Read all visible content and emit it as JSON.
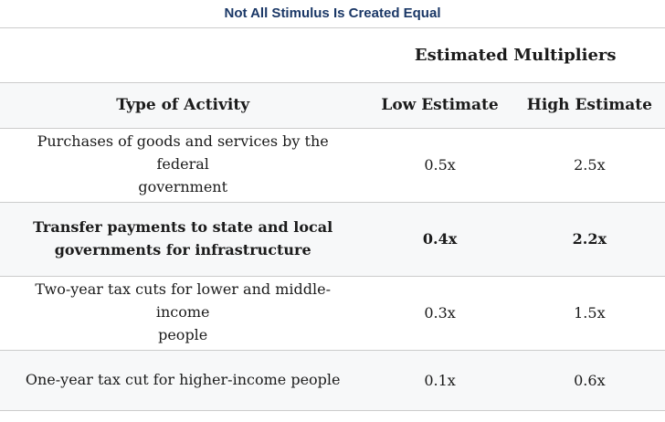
{
  "title": "Not All Stimulus Is Created Equal",
  "table": {
    "group_header": "Estimated Multipliers",
    "columns": [
      "Type of Activity",
      "Low Estimate",
      "High Estimate"
    ],
    "rows": [
      {
        "activity": "Purchases of goods and services by the federal\ngovernment",
        "low": "0.5x",
        "high": "2.5x"
      },
      {
        "activity": "Transfer payments to state and local\ngovernments for infrastructure",
        "low": "0.4x",
        "high": "2.2x"
      },
      {
        "activity": "Two-year tax cuts for lower and middle-income\npeople",
        "low": "0.3x",
        "high": "1.5x"
      },
      {
        "activity": "One-year tax cut for higher-income people",
        "low": "0.1x",
        "high": "0.6x"
      }
    ]
  },
  "colors": {
    "title-color": "#1a3766",
    "text-color": "#1b1b1b",
    "row-alt": "#f7f8f9",
    "border-color": "#cccccc",
    "bg": "#ffffff"
  },
  "chart_data": {
    "type": "table",
    "title": "Not All Stimulus Is Created Equal",
    "group_header": "Estimated Multipliers",
    "columns": [
      "Type of Activity",
      "Low Estimate",
      "High Estimate"
    ],
    "rows": [
      [
        "Purchases of goods and services by the federal government",
        "0.5x",
        "2.5x"
      ],
      [
        "Transfer payments to state and local governments for infrastructure",
        "0.4x",
        "2.2x"
      ],
      [
        "Two-year tax cuts for lower and middle-income people",
        "0.3x",
        "1.5x"
      ],
      [
        "One-year tax cut for higher-income people",
        "0.1x",
        "0.6x"
      ]
    ],
    "numeric_values": {
      "low_estimate": [
        0.5,
        0.4,
        0.3,
        0.1
      ],
      "high_estimate": [
        2.5,
        2.2,
        1.5,
        0.6
      ]
    },
    "highlighted_row_index": 1,
    "layout": "alternating row shading, no vertical gridlines, horizontal rules between rows"
  }
}
